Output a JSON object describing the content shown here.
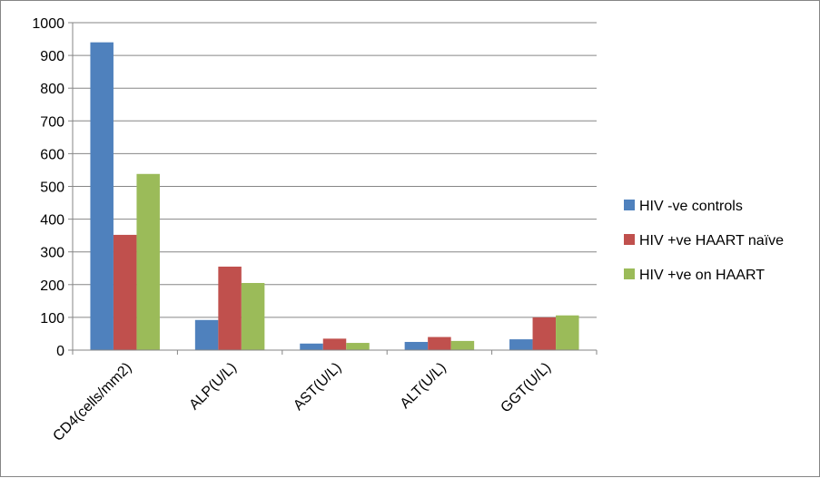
{
  "chart_data": {
    "type": "bar",
    "categories": [
      "CD4(cells/mm2)",
      "ALP(U/L)",
      "AST(U/L)",
      "ALT(U/L)",
      "GGT(U/L)"
    ],
    "series": [
      {
        "name": "HIV -ve controls",
        "color": "#4F81BD",
        "values": [
          940,
          92,
          20,
          25,
          33
        ]
      },
      {
        "name": "HIV +ve HAART naïve",
        "color": "#C0504D",
        "values": [
          352,
          255,
          35,
          40,
          100
        ]
      },
      {
        "name": "HIV +ve on HAART",
        "color": "#9BBB59",
        "values": [
          538,
          205,
          22,
          28,
          106
        ]
      }
    ],
    "ylim": [
      0,
      1000
    ],
    "yticks": [
      0,
      100,
      200,
      300,
      400,
      500,
      600,
      700,
      800,
      900,
      1000
    ],
    "grid": true,
    "legend_position": "right"
  }
}
